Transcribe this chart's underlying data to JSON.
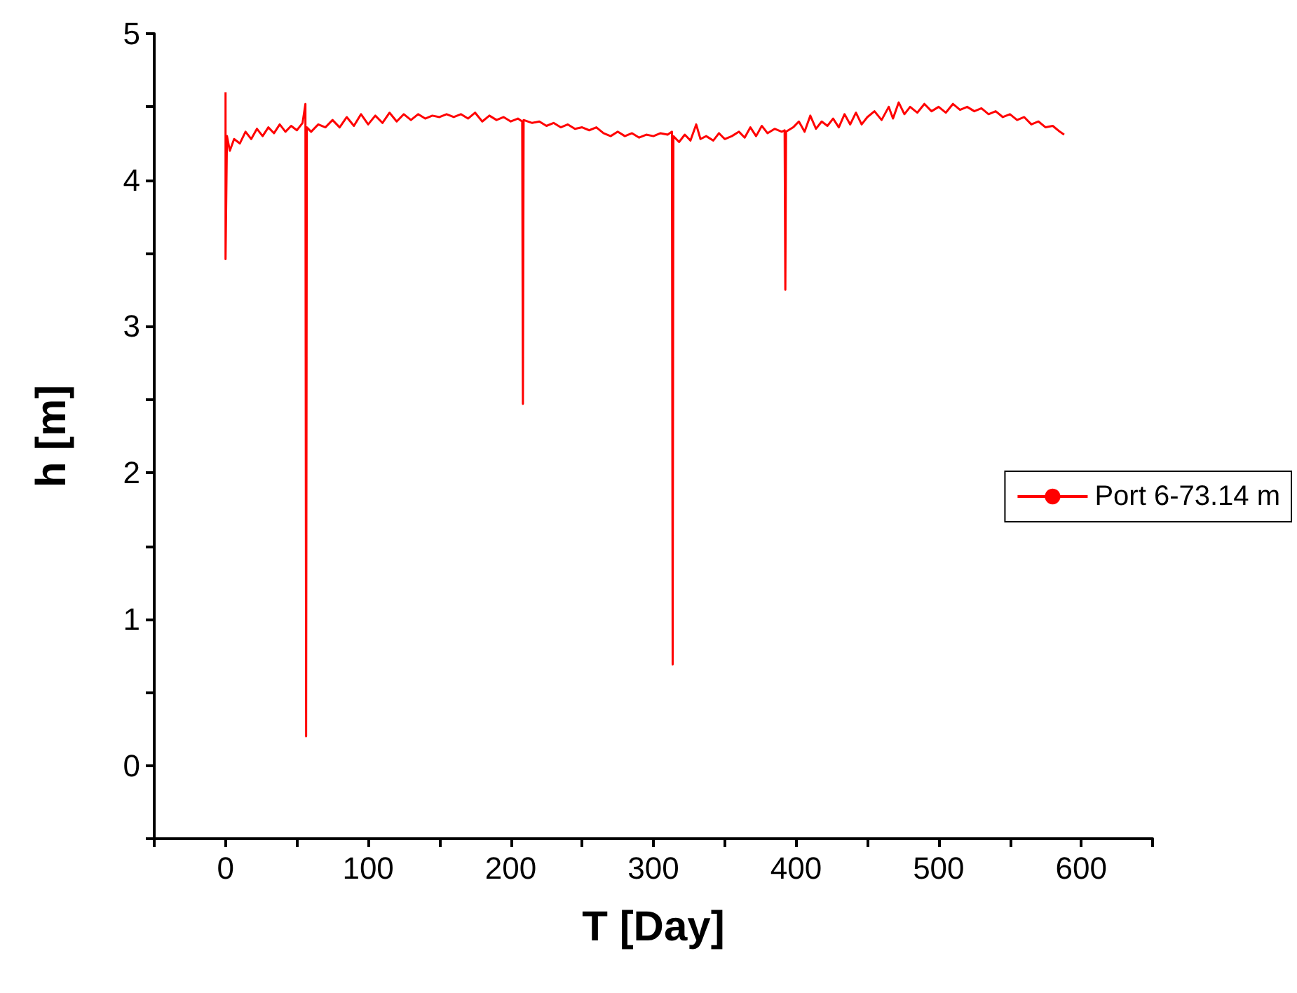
{
  "chart_data": {
    "type": "line",
    "xlabel": "T [Day]",
    "ylabel": "h [m]",
    "xlim": [
      -50,
      650
    ],
    "xticks": [
      {
        "value": -50,
        "label": null
      },
      0,
      {
        "value": 50,
        "label": null
      },
      100,
      {
        "value": 150,
        "label": null
      },
      200,
      {
        "value": 250,
        "label": null
      },
      300,
      {
        "value": 350,
        "label": null
      },
      400,
      {
        "value": 450,
        "label": null
      },
      500,
      {
        "value": 550,
        "label": null
      },
      600,
      {
        "value": 650,
        "label": null
      }
    ],
    "ylim": [
      -0.5,
      5
    ],
    "yticks": [
      {
        "value": -0.5,
        "label": null
      },
      0,
      {
        "value": 0.5,
        "label": null
      },
      1,
      {
        "value": 1.5,
        "label": null
      },
      2,
      {
        "value": 2.5,
        "label": null
      },
      3,
      {
        "value": 3.5,
        "label": null
      },
      4,
      {
        "value": 4.5,
        "label": null
      },
      5
    ],
    "grid": false,
    "legend": "right",
    "marker": "none",
    "line_style": "solid",
    "series": [
      {
        "name": "Port 6-73.14 m",
        "color": "#ff0000",
        "x": [
          0,
          0,
          1,
          3,
          6,
          10,
          14,
          18,
          22,
          26,
          30,
          34,
          38,
          42,
          46,
          50,
          54,
          56,
          56.5,
          57,
          60,
          65,
          70,
          75,
          80,
          85,
          90,
          95,
          100,
          105,
          110,
          115,
          120,
          125,
          130,
          135,
          140,
          145,
          150,
          155,
          160,
          165,
          170,
          175,
          180,
          185,
          190,
          195,
          200,
          205,
          208,
          208.5,
          209,
          215,
          220,
          225,
          230,
          235,
          240,
          245,
          250,
          255,
          260,
          265,
          270,
          275,
          280,
          285,
          290,
          295,
          300,
          305,
          310,
          313,
          313.5,
          314,
          318,
          322,
          326,
          330,
          333,
          337,
          342,
          346,
          350,
          355,
          360,
          364,
          368,
          372,
          376,
          380,
          385,
          390,
          392,
          392.5,
          393,
          398,
          402,
          406,
          410,
          414,
          418,
          422,
          426,
          430,
          434,
          438,
          442,
          446,
          450,
          455,
          460,
          465,
          468,
          472,
          476,
          480,
          485,
          490,
          495,
          500,
          505,
          510,
          515,
          520,
          525,
          530,
          535,
          540,
          545,
          550,
          555,
          560,
          565,
          570,
          575,
          580,
          585,
          588
        ],
        "values": [
          4.6,
          3.46,
          4.3,
          4.2,
          4.28,
          4.25,
          4.33,
          4.28,
          4.35,
          4.3,
          4.36,
          4.32,
          4.38,
          4.33,
          4.37,
          4.34,
          4.39,
          4.52,
          0.2,
          4.36,
          4.33,
          4.38,
          4.36,
          4.41,
          4.36,
          4.43,
          4.37,
          4.45,
          4.38,
          4.44,
          4.39,
          4.46,
          4.4,
          4.45,
          4.41,
          4.45,
          4.42,
          4.44,
          4.43,
          4.45,
          4.43,
          4.45,
          4.42,
          4.46,
          4.4,
          4.44,
          4.41,
          4.43,
          4.4,
          4.42,
          4.4,
          2.47,
          4.41,
          4.39,
          4.4,
          4.37,
          4.39,
          4.36,
          4.38,
          4.35,
          4.36,
          4.34,
          4.36,
          4.32,
          4.3,
          4.33,
          4.3,
          4.32,
          4.29,
          4.31,
          4.3,
          4.32,
          4.31,
          4.33,
          0.69,
          4.3,
          4.26,
          4.31,
          4.27,
          4.38,
          4.28,
          4.3,
          4.27,
          4.32,
          4.28,
          4.3,
          4.33,
          4.29,
          4.36,
          4.3,
          4.37,
          4.32,
          4.35,
          4.33,
          4.34,
          3.25,
          4.33,
          4.36,
          4.4,
          4.33,
          4.44,
          4.35,
          4.4,
          4.37,
          4.42,
          4.36,
          4.45,
          4.38,
          4.46,
          4.38,
          4.43,
          4.47,
          4.41,
          4.5,
          4.42,
          4.53,
          4.45,
          4.5,
          4.46,
          4.52,
          4.47,
          4.5,
          4.46,
          4.52,
          4.48,
          4.5,
          4.47,
          4.49,
          4.45,
          4.47,
          4.43,
          4.45,
          4.41,
          4.43,
          4.38,
          4.4,
          4.36,
          4.37,
          4.33,
          4.31
        ]
      }
    ]
  }
}
